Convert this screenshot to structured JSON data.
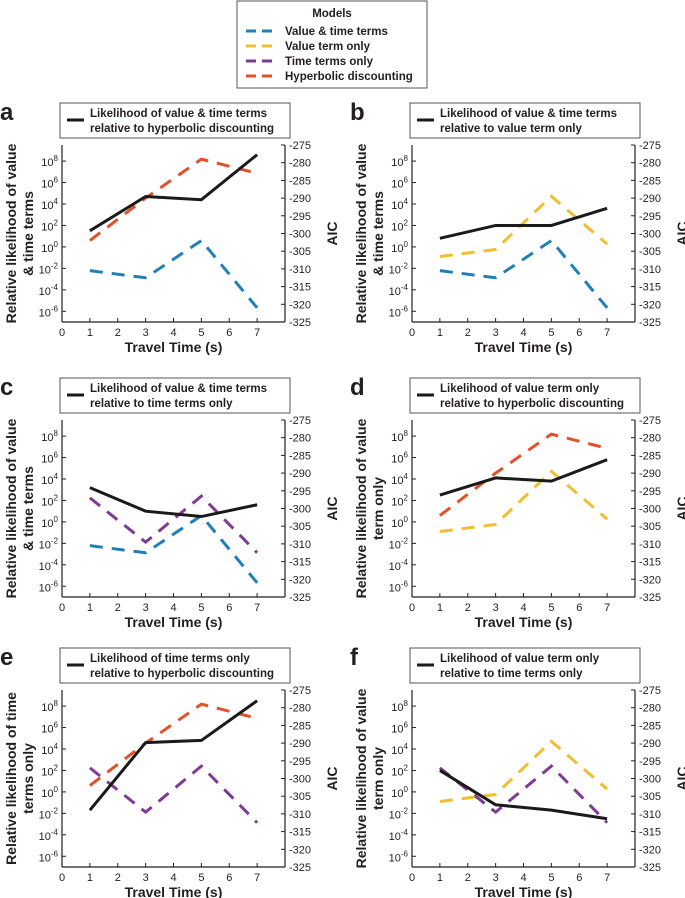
{
  "legend": {
    "title": "Models",
    "entries": [
      {
        "name": "Value & time terms",
        "color": "#1f7fb8"
      },
      {
        "name": "Value term only",
        "color": "#f0be2e"
      },
      {
        "name": "Time terms only",
        "color": "#7f3a97"
      },
      {
        "name": "Hyperbolic discounting",
        "color": "#e0522b"
      }
    ]
  },
  "colors": {
    "likelihood": "#1a1a1a",
    "value_time": "#1f7fb8",
    "value_only": "#f0be2e",
    "time_only": "#7f3a97",
    "hyperbolic": "#e0522b"
  },
  "chart_data": [
    {
      "panel": "a",
      "type": "line",
      "title_lines": [
        "Likelihood of value & time terms",
        "relative to hyperbolic discounting"
      ],
      "ylabel_lines": [
        "Relative likelihood of value",
        "& time terms"
      ],
      "xlabel": "Travel Time (s)",
      "ylabel_right": "AIC",
      "x": [
        1,
        3,
        5,
        7
      ],
      "xlim": [
        0,
        8
      ],
      "likelihood_log10": [
        1.5,
        4.7,
        4.4,
        8.6
      ],
      "aic_series": [
        {
          "name": "Value & time terms",
          "key": "value_time",
          "values": [
            -310.5,
            -312.5,
            -302,
            -321
          ]
        },
        {
          "name": "Hyperbolic discounting",
          "key": "hyperbolic",
          "values": [
            -302,
            -290,
            -279,
            -283
          ]
        }
      ]
    },
    {
      "panel": "b",
      "type": "line",
      "title_lines": [
        "Likelihood of value & time terms",
        "relative to value term only"
      ],
      "ylabel_lines": [
        "Relative likelihood of value",
        "& time terms"
      ],
      "xlabel": "Travel Time (s)",
      "ylabel_right": "AIC",
      "x": [
        1,
        3,
        5,
        7
      ],
      "xlim": [
        0,
        8
      ],
      "likelihood_log10": [
        0.8,
        2.0,
        2.0,
        3.6
      ],
      "aic_series": [
        {
          "name": "Value & time terms",
          "key": "value_time",
          "values": [
            -310.5,
            -312.5,
            -302,
            -321
          ]
        },
        {
          "name": "Value term only",
          "key": "value_only",
          "values": [
            -306.5,
            -304.5,
            -289.5,
            -303
          ]
        }
      ]
    },
    {
      "panel": "c",
      "type": "line",
      "title_lines": [
        "Likelihood of value & time terms",
        "relative to time terms only"
      ],
      "ylabel_lines": [
        "Relative likelihood of value",
        "& time terms"
      ],
      "xlabel": "Travel Time (s)",
      "ylabel_right": "AIC",
      "x": [
        1,
        3,
        5,
        7
      ],
      "xlim": [
        0,
        8
      ],
      "likelihood_log10": [
        3.2,
        1.0,
        0.5,
        1.6
      ],
      "aic_series": [
        {
          "name": "Value & time terms",
          "key": "value_time",
          "values": [
            -310.5,
            -312.5,
            -302,
            -321
          ]
        },
        {
          "name": "Time terms only",
          "key": "time_only",
          "values": [
            -297,
            -309.5,
            -296.5,
            -312.5
          ]
        }
      ]
    },
    {
      "panel": "d",
      "type": "line",
      "title_lines": [
        "Likelihood of value term only",
        "relative to hyperbolic discounting"
      ],
      "ylabel_lines": [
        "Relative likelihood of value",
        "term only"
      ],
      "xlabel": "Travel Time (s)",
      "ylabel_right": "AIC",
      "x": [
        1,
        3,
        5,
        7
      ],
      "xlim": [
        0,
        8
      ],
      "likelihood_log10": [
        2.5,
        4.1,
        3.8,
        5.8
      ],
      "aic_series": [
        {
          "name": "Value term only",
          "key": "value_only",
          "values": [
            -306.5,
            -304.5,
            -289.5,
            -303
          ]
        },
        {
          "name": "Hyperbolic discounting",
          "key": "hyperbolic",
          "values": [
            -302,
            -290,
            -279,
            -283
          ]
        }
      ]
    },
    {
      "panel": "e",
      "type": "line",
      "title_lines": [
        "Likelihood of time terms only",
        "relative to hyperbolic discounting"
      ],
      "ylabel_lines": [
        "Relative likelihood of time",
        "terms only"
      ],
      "xlabel": "Travel Time (s)",
      "ylabel_right": "AIC",
      "x": [
        1,
        3,
        5,
        7
      ],
      "xlim": [
        0,
        8
      ],
      "likelihood_log10": [
        -1.7,
        4.6,
        4.8,
        8.5
      ],
      "aic_series": [
        {
          "name": "Time terms only",
          "key": "time_only",
          "values": [
            -297,
            -309.5,
            -296.5,
            -312.5
          ]
        },
        {
          "name": "Hyperbolic discounting",
          "key": "hyperbolic",
          "values": [
            -302,
            -290,
            -279,
            -283
          ]
        }
      ]
    },
    {
      "panel": "f",
      "type": "line",
      "title_lines": [
        "Likelihood of value term only",
        "relative to time terms only"
      ],
      "ylabel_lines": [
        "Relative likelihood of value",
        "term only"
      ],
      "xlabel": "Travel Time (s)",
      "ylabel_right": "AIC",
      "x": [
        1,
        3,
        5,
        7
      ],
      "xlim": [
        0,
        8
      ],
      "likelihood_log10": [
        2.0,
        -1.2,
        -1.7,
        -2.5
      ],
      "aic_series": [
        {
          "name": "Time terms only",
          "key": "time_only",
          "values": [
            -297,
            -309.5,
            -296.5,
            -312.5
          ]
        },
        {
          "name": "Value term only",
          "key": "value_only",
          "values": [
            -306.5,
            -304.5,
            -289.5,
            -303
          ]
        }
      ]
    }
  ],
  "axes": {
    "x_ticks": [
      "0",
      "1",
      "2",
      "3",
      "4",
      "5",
      "6",
      "7"
    ],
    "left_log_range": [
      -7,
      9.5
    ],
    "left_ticks_exp": [
      "8",
      "6",
      "4",
      "2",
      "0",
      "-2",
      "-4",
      "-6"
    ],
    "left_tick_base": "10",
    "right_range": [
      -325,
      -275
    ],
    "right_ticks": [
      "-275",
      "-280",
      "-285",
      "-290",
      "-295",
      "-300",
      "-305",
      "-310",
      "-315",
      "-320",
      "-325"
    ]
  }
}
